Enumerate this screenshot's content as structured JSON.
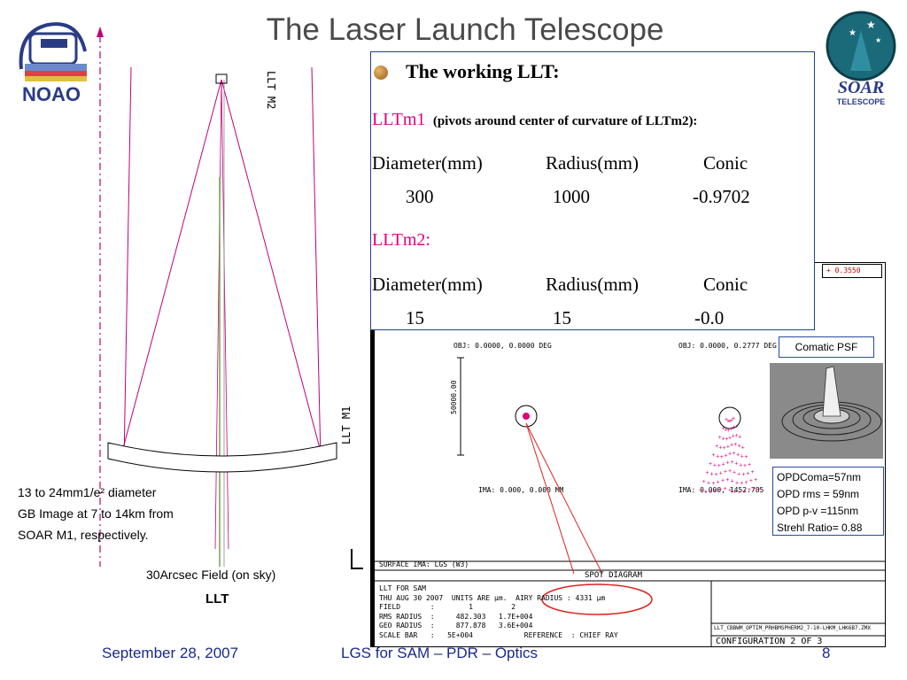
{
  "slide": {
    "title": "The Laser Launch Telescope",
    "footer_date": "September 28, 2007",
    "footer_center": "LGS for SAM – PDR – Optics",
    "page_number": "8"
  },
  "logos": {
    "left": "NOAO",
    "right_top": "SOAR",
    "right_bottom": "TELESCOPE"
  },
  "ray_diagram": {
    "label_m2": "LLT M2",
    "label_m1": "LLT M1",
    "left_note": [
      "13 to 24mm1/e² diameter",
      "GB Image at 7 to 14km from",
      "SOAR M1, respectively."
    ],
    "field_label": "30Arcsec Field (on sky)",
    "caption": "LLT"
  },
  "info_box": {
    "heading": "The working LLT:",
    "m1_label": "LLTm1",
    "m1_note": "(pivots around center of curvature of LLTm2):",
    "col_headers": [
      "Diameter(mm)",
      "Radius(mm)",
      "Conic"
    ],
    "m1_values": [
      "300",
      "1000",
      "-0.9702"
    ],
    "m2_label": "LLTm2:",
    "m2_values": [
      "15",
      "15",
      "-0.0"
    ]
  },
  "spot_diagram": {
    "top_value": "+ 0.3550",
    "obj1": "OBJ: 0.0000, 0.0000 DEG",
    "obj2": "OBJ: 0.0000, 0.2777 DEG",
    "scale_label": "50000.00",
    "ima1": "IMA: 0.000, 0.000 MM",
    "ima2": "IMA: 0.000, 1452.785",
    "surface": "SURFACE IMA: LGS (W3)",
    "panel_title": "SPOT DIAGRAM",
    "info_lines": [
      "LLT FOR SAM",
      "THU AUG 30 2007  UNITS ARE µm.  AIRY RADIUS : 4331 µm",
      "FIELD       :        1         2",
      "RMS RADIUS  :     482.303   1.7E+004",
      "GEO RADIUS  :     877.878   3.6E+004",
      "SCALE BAR   :   5E+004            REFERENCE  : CHIEF RAY"
    ],
    "file_name": "LLT_CBBWM_OPTIM_PRHBMSPHERM2_7-10-LHKM_LHK6B7.ZMX",
    "configuration": "CONFIGURATION 2 OF 3"
  },
  "psf": {
    "label": "Comatic PSF",
    "stats": [
      "OPDComa=57nm",
      "OPD rms = 59nm",
      "OPD p-v =115nm",
      "Strehl Ratio= 0.88"
    ]
  },
  "colors": {
    "ray_magenta": "#c0007a",
    "spot_magenta": "#e0007a",
    "ellipse_red": "#e02020",
    "box_border": "#1f3f8f",
    "footer_blue": "#1a2a8a"
  }
}
